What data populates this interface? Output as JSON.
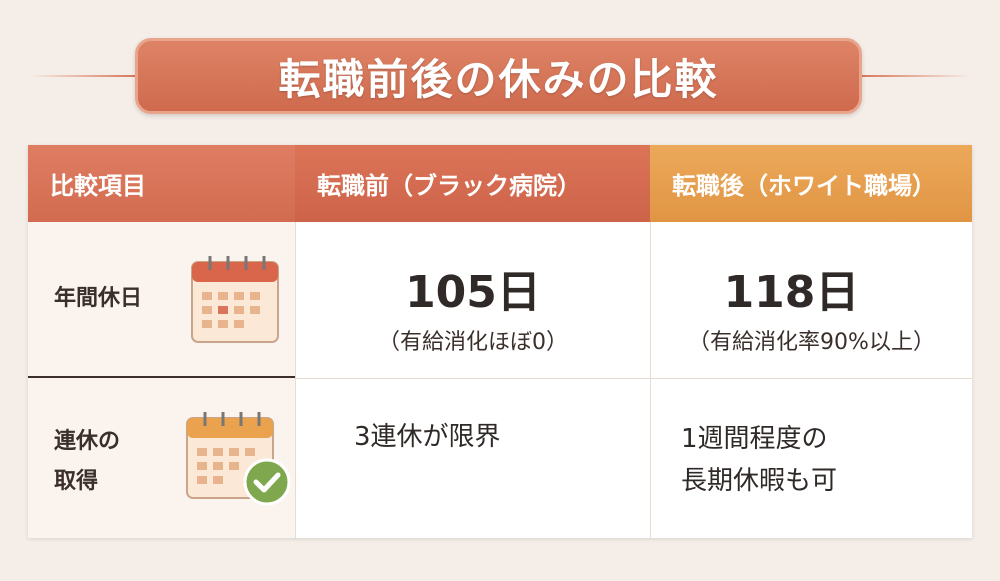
{
  "title": "転職前後の休みの比較",
  "colors": {
    "banner": "#d9785a",
    "header_item": "#d9735a",
    "header_before": "#d86d52",
    "header_after": "#e8a050",
    "background": "#f5eee8"
  },
  "table": {
    "headers": [
      "比較項目",
      "転職前（ブラック病院）",
      "転職後（ホワイト職場）"
    ],
    "rows": [
      {
        "label": "年間休日",
        "icon": "calendar-icon",
        "before_main": "105日",
        "before_sub": "（有給消化ほぼ0）",
        "after_main": "118日",
        "after_sub": "（有給消化率90%以上）"
      },
      {
        "label_line1": "連休の",
        "label_line2": "取得",
        "icon": "calendar-check-icon",
        "before_main": "3連休が限界",
        "after_line1": "1週間程度の",
        "after_line2": "長期休暇も可"
      }
    ]
  }
}
